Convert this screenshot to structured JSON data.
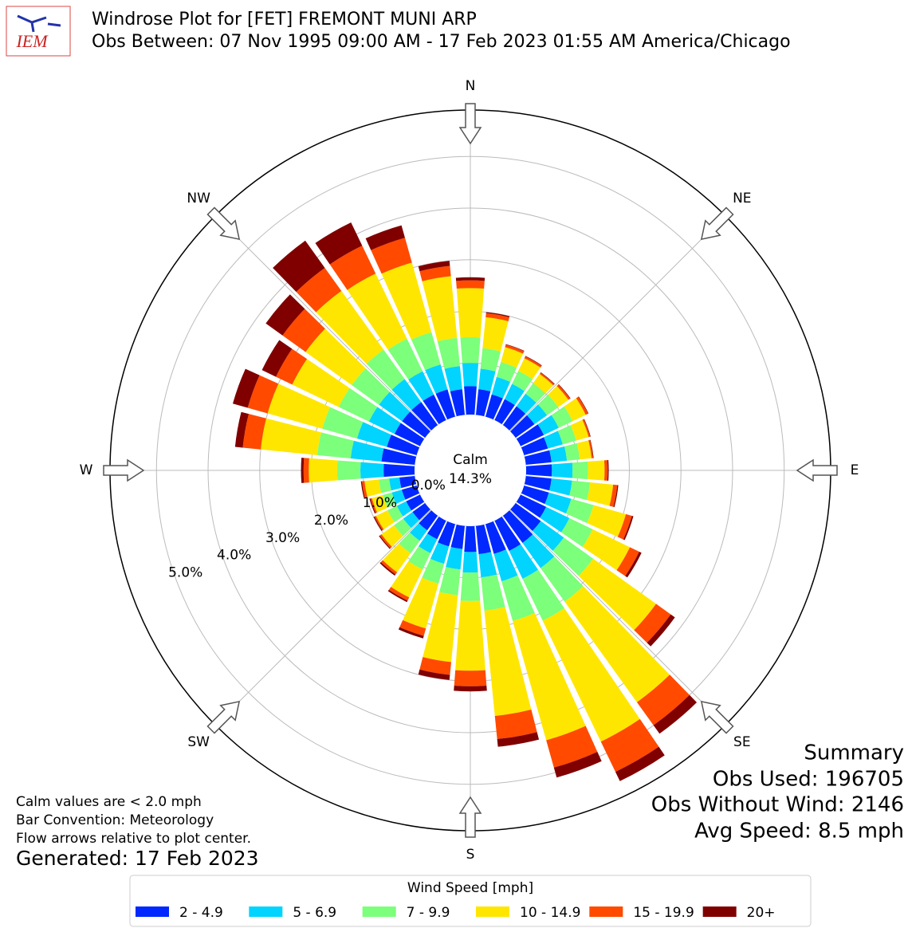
{
  "chart_data": {
    "type": "windrose",
    "logo_text": "IEM",
    "title": "Windrose Plot for [FET] FREMONT MUNI ARP",
    "subtitle": "Obs Between: 07 Nov 1995 09:00 AM - 17 Feb 2023 01:55 AM America/Chicago",
    "calm": {
      "label": "Calm",
      "value": 14.3,
      "value_label": "14.3%"
    },
    "x": [
      0,
      10,
      20,
      30,
      40,
      50,
      60,
      70,
      80,
      90,
      100,
      110,
      120,
      130,
      140,
      150,
      160,
      170,
      180,
      190,
      200,
      210,
      220,
      230,
      240,
      250,
      260,
      270,
      280,
      290,
      300,
      310,
      320,
      330,
      340,
      350
    ],
    "xlim": [
      0,
      360
    ],
    "xticks": [
      {
        "value": 0,
        "label": "N"
      },
      {
        "value": 45,
        "label": "NE"
      },
      {
        "value": 90,
        "label": "E"
      },
      {
        "value": 135,
        "label": "SE"
      },
      {
        "value": 180,
        "label": "S"
      },
      {
        "value": 225,
        "label": "SW"
      },
      {
        "value": 270,
        "label": "W"
      },
      {
        "value": 315,
        "label": "NW"
      }
    ],
    "ylim": [
      0,
      5.9
    ],
    "yticks": [
      {
        "value": 0,
        "label": "0.0%"
      },
      {
        "value": 1,
        "label": "1.0%"
      },
      {
        "value": 2,
        "label": "2.0%"
      },
      {
        "value": 3,
        "label": "3.0%"
      },
      {
        "value": 4,
        "label": "4.0%"
      },
      {
        "value": 5,
        "label": "5.0%"
      }
    ],
    "grid": true,
    "series": [
      {
        "name": "2 - 4.9",
        "color": "#0028ff",
        "values": [
          0.55,
          0.5,
          0.45,
          0.45,
          0.45,
          0.45,
          0.5,
          0.48,
          0.5,
          0.5,
          0.5,
          0.5,
          0.55,
          0.6,
          0.65,
          0.65,
          0.6,
          0.55,
          0.5,
          0.45,
          0.45,
          0.4,
          0.35,
          0.3,
          0.3,
          0.3,
          0.3,
          0.6,
          0.65,
          0.6,
          0.55,
          0.55,
          0.55,
          0.55,
          0.55,
          0.5
        ]
      },
      {
        "name": "5 - 6.9",
        "color": "#00d4ff",
        "values": [
          0.45,
          0.4,
          0.35,
          0.33,
          0.3,
          0.3,
          0.32,
          0.3,
          0.3,
          0.4,
          0.4,
          0.45,
          0.5,
          0.55,
          0.6,
          0.6,
          0.55,
          0.45,
          0.4,
          0.4,
          0.35,
          0.3,
          0.25,
          0.22,
          0.2,
          0.2,
          0.2,
          0.45,
          0.6,
          0.6,
          0.55,
          0.55,
          0.55,
          0.5,
          0.5,
          0.45
        ]
      },
      {
        "name": "7 - 9.9",
        "color": "#7cff7a",
        "values": [
          0.5,
          0.4,
          0.3,
          0.28,
          0.25,
          0.27,
          0.3,
          0.27,
          0.25,
          0.3,
          0.35,
          0.45,
          0.5,
          0.7,
          0.8,
          0.9,
          0.8,
          0.65,
          0.55,
          0.5,
          0.4,
          0.35,
          0.3,
          0.22,
          0.2,
          0.18,
          0.2,
          0.45,
          0.65,
          0.7,
          0.65,
          0.65,
          0.7,
          0.7,
          0.65,
          0.55
        ]
      },
      {
        "name": "10 - 14.9",
        "color": "#ffe600",
        "values": [
          0.95,
          0.6,
          0.3,
          0.27,
          0.22,
          0.24,
          0.28,
          0.25,
          0.23,
          0.32,
          0.45,
          0.65,
          0.8,
          1.5,
          2.4,
          2.6,
          2.4,
          2.05,
          1.35,
          1.3,
          0.9,
          0.6,
          0.45,
          0.3,
          0.25,
          0.22,
          0.28,
          0.55,
          1.1,
          1.1,
          1.0,
          1.1,
          1.4,
          1.4,
          1.4,
          1.2
        ]
      },
      {
        "name": "15 - 19.9",
        "color": "#ff4a00",
        "values": [
          0.15,
          0.08,
          0.05,
          0.04,
          0.03,
          0.04,
          0.05,
          0.03,
          0.03,
          0.06,
          0.08,
          0.12,
          0.2,
          0.35,
          0.55,
          0.65,
          0.55,
          0.45,
          0.3,
          0.25,
          0.15,
          0.07,
          0.05,
          0.04,
          0.03,
          0.03,
          0.05,
          0.1,
          0.35,
          0.4,
          0.35,
          0.55,
          0.55,
          0.6,
          0.5,
          0.2
        ]
      },
      {
        "name": "20+",
        "color": "#800000",
        "values": [
          0.06,
          0.02,
          0.01,
          0.01,
          0.01,
          0.01,
          0.01,
          0.01,
          0.01,
          0.02,
          0.02,
          0.03,
          0.05,
          0.1,
          0.2,
          0.2,
          0.2,
          0.15,
          0.1,
          0.1,
          0.05,
          0.03,
          0.03,
          0.02,
          0.02,
          0.02,
          0.02,
          0.05,
          0.15,
          0.3,
          0.3,
          0.4,
          0.65,
          0.5,
          0.25,
          0.1
        ]
      }
    ],
    "legend_title": "Wind Speed [mph]",
    "notes": [
      "Calm values are < 2.0 mph",
      "Bar Convention: Meteorology",
      "Flow arrows relative to plot center."
    ],
    "generated": "Generated: 17 Feb 2023",
    "summary": [
      "Summary",
      "Obs Used: 196705",
      "Obs Without Wind: 2146",
      "Avg Speed: 8.5 mph"
    ]
  }
}
